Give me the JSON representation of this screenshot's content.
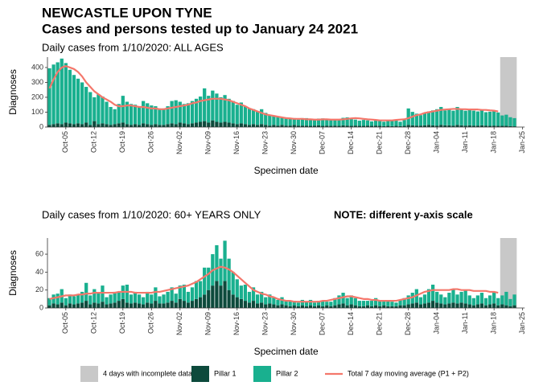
{
  "header": {
    "title": "NEWCASTLE UPON TYNE",
    "subtitle": "Cases and persons tested up to January 24 2021"
  },
  "legend_shade": "4 days with incomplete data",
  "shade_color": "#c8c8c8",
  "chart_data": [
    {
      "type": "bar",
      "stacked": true,
      "title": "Daily cases from 1/10/2020: ALL AGES",
      "ylabel": "Diagnoses",
      "xlabel": "Specimen date",
      "ylim": [
        0,
        470
      ],
      "yticks": [
        0,
        100,
        200,
        300,
        400
      ],
      "categories": [
        null,
        null,
        null,
        null,
        "Oct-05",
        null,
        null,
        null,
        null,
        null,
        null,
        "Oct-12",
        null,
        null,
        null,
        null,
        null,
        null,
        "Oct-19",
        null,
        null,
        null,
        null,
        null,
        null,
        "Oct-26",
        null,
        null,
        null,
        null,
        null,
        null,
        "Nov-02",
        null,
        null,
        null,
        null,
        null,
        null,
        "Nov-09",
        null,
        null,
        null,
        null,
        null,
        null,
        "Nov-16",
        null,
        null,
        null,
        null,
        null,
        null,
        "Nov-23",
        null,
        null,
        null,
        null,
        null,
        null,
        "Nov-30",
        null,
        null,
        null,
        null,
        null,
        null,
        "Dec-07",
        null,
        null,
        null,
        null,
        null,
        null,
        "Dec-14",
        null,
        null,
        null,
        null,
        null,
        null,
        "Dec-21",
        null,
        null,
        null,
        null,
        null,
        null,
        "Dec-28",
        null,
        null,
        null,
        null,
        null,
        null,
        "Jan-04",
        null,
        null,
        null,
        null,
        null,
        null,
        "Jan-11",
        null,
        null,
        null,
        null,
        null,
        null,
        "Jan-18",
        null,
        null,
        null,
        null,
        null,
        null,
        "Jan-25"
      ],
      "series": [
        {
          "name": "Pillar 1",
          "color": "#0d4a3c",
          "values": [
            15,
            20,
            25,
            20,
            30,
            25,
            20,
            25,
            20,
            30,
            15,
            40,
            20,
            25,
            20,
            15,
            20,
            25,
            30,
            20,
            15,
            20,
            15,
            25,
            20,
            15,
            20,
            15,
            15,
            20,
            25,
            20,
            30,
            25,
            20,
            25,
            30,
            35,
            40,
            30,
            45,
            35,
            30,
            35,
            30,
            25,
            20,
            25,
            20,
            15,
            20,
            15,
            20,
            15,
            10,
            15,
            10,
            15,
            10,
            10,
            15,
            10,
            10,
            10,
            8,
            10,
            12,
            8,
            10,
            8,
            10,
            8,
            12,
            10,
            8,
            10,
            8,
            8,
            10,
            8,
            10,
            8,
            6,
            8,
            6,
            8,
            6,
            8,
            15,
            12,
            10,
            10,
            12,
            15,
            12,
            10,
            15,
            12,
            12,
            10,
            15,
            12,
            10,
            12,
            10,
            10,
            12,
            10,
            8,
            10,
            8,
            8,
            8,
            6,
            5,
            null,
            null
          ]
        },
        {
          "name": "Pillar 2",
          "color": "#19b08f",
          "values": [
            380,
            400,
            410,
            440,
            400,
            360,
            330,
            300,
            280,
            240,
            220,
            160,
            200,
            180,
            150,
            120,
            100,
            130,
            180,
            150,
            140,
            130,
            120,
            150,
            140,
            130,
            120,
            110,
            110,
            120,
            150,
            160,
            140,
            130,
            140,
            150,
            160,
            170,
            220,
            180,
            200,
            190,
            170,
            180,
            160,
            150,
            130,
            140,
            120,
            110,
            100,
            90,
            100,
            80,
            70,
            60,
            60,
            50,
            55,
            50,
            45,
            40,
            50,
            50,
            45,
            40,
            45,
            50,
            40,
            45,
            40,
            45,
            50,
            55,
            45,
            40,
            35,
            40,
            35,
            30,
            40,
            35,
            30,
            35,
            40,
            35,
            30,
            40,
            110,
            90,
            80,
            70,
            80,
            90,
            100,
            110,
            120,
            100,
            110,
            100,
            120,
            110,
            100,
            105,
            100,
            95,
            100,
            90,
            95,
            100,
            90,
            70,
            75,
            60,
            55,
            null,
            null
          ]
        },
        {
          "name": "Total 7 day moving average (P1 + P2)",
          "color": "#f4776b",
          "type": "line",
          "values": [
            260,
            320,
            370,
            400,
            410,
            400,
            390,
            370,
            340,
            300,
            270,
            240,
            220,
            200,
            185,
            170,
            150,
            140,
            140,
            145,
            145,
            140,
            135,
            135,
            130,
            125,
            125,
            120,
            120,
            125,
            130,
            135,
            140,
            145,
            150,
            160,
            165,
            175,
            180,
            185,
            190,
            190,
            190,
            185,
            180,
            170,
            160,
            150,
            140,
            125,
            115,
            105,
            95,
            85,
            80,
            75,
            70,
            65,
            60,
            58,
            55,
            55,
            55,
            52,
            52,
            50,
            50,
            52,
            52,
            50,
            50,
            50,
            52,
            55,
            58,
            60,
            58,
            55,
            52,
            50,
            48,
            45,
            45,
            45,
            45,
            48,
            50,
            52,
            60,
            70,
            80,
            85,
            95,
            100,
            105,
            110,
            115,
            118,
            120,
            122,
            122,
            120,
            120,
            118,
            118,
            118,
            115,
            115,
            112,
            110,
            105,
            null,
            null,
            null,
            null,
            null,
            null
          ]
        }
      ]
    },
    {
      "type": "bar",
      "stacked": true,
      "title": "Daily cases from 1/10/2020: 60+ YEARS ONLY",
      "note": "NOTE: different y-axis scale",
      "ylabel": "Diagnoses",
      "xlabel": "Specimen date",
      "ylim": [
        0,
        78
      ],
      "yticks": [
        0,
        20,
        40,
        60
      ],
      "categories": [
        null,
        null,
        null,
        null,
        "Oct-05",
        null,
        null,
        null,
        null,
        null,
        null,
        "Oct-12",
        null,
        null,
        null,
        null,
        null,
        null,
        "Oct-19",
        null,
        null,
        null,
        null,
        null,
        null,
        "Oct-26",
        null,
        null,
        null,
        null,
        null,
        null,
        "Nov-02",
        null,
        null,
        null,
        null,
        null,
        null,
        "Nov-09",
        null,
        null,
        null,
        null,
        null,
        null,
        "Nov-16",
        null,
        null,
        null,
        null,
        null,
        null,
        "Nov-23",
        null,
        null,
        null,
        null,
        null,
        null,
        "Nov-30",
        null,
        null,
        null,
        null,
        null,
        null,
        "Dec-07",
        null,
        null,
        null,
        null,
        null,
        null,
        "Dec-14",
        null,
        null,
        null,
        null,
        null,
        null,
        "Dec-21",
        null,
        null,
        null,
        null,
        null,
        null,
        "Dec-28",
        null,
        null,
        null,
        null,
        null,
        null,
        "Jan-04",
        null,
        null,
        null,
        null,
        null,
        null,
        "Jan-11",
        null,
        null,
        null,
        null,
        null,
        null,
        "Jan-18",
        null,
        null,
        null,
        null,
        null,
        null,
        "Jan-25"
      ],
      "series": [
        {
          "name": "Pillar 1",
          "color": "#0d4a3c",
          "values": [
            3,
            5,
            4,
            6,
            3,
            5,
            4,
            5,
            6,
            8,
            4,
            6,
            5,
            7,
            4,
            5,
            6,
            8,
            10,
            6,
            5,
            6,
            5,
            4,
            6,
            5,
            8,
            5,
            5,
            6,
            8,
            6,
            10,
            8,
            6,
            8,
            10,
            12,
            15,
            20,
            25,
            30,
            25,
            30,
            20,
            15,
            12,
            10,
            8,
            6,
            8,
            5,
            6,
            4,
            5,
            4,
            3,
            4,
            3,
            2,
            3,
            2,
            3,
            2,
            3,
            2,
            3,
            2,
            3,
            2,
            3,
            4,
            5,
            3,
            4,
            3,
            2,
            2,
            3,
            2,
            3,
            2,
            3,
            2,
            2,
            2,
            3,
            3,
            4,
            5,
            6,
            4,
            5,
            6,
            8,
            6,
            5,
            4,
            5,
            6,
            5,
            6,
            5,
            4,
            3,
            4,
            5,
            3,
            4,
            5,
            3,
            4,
            3,
            2,
            3,
            null,
            null
          ]
        },
        {
          "name": "Pillar 2",
          "color": "#19b08f",
          "values": [
            8,
            10,
            12,
            15,
            8,
            10,
            9,
            10,
            12,
            20,
            10,
            15,
            12,
            18,
            8,
            10,
            12,
            10,
            15,
            20,
            10,
            12,
            10,
            8,
            12,
            10,
            15,
            8,
            10,
            12,
            15,
            10,
            15,
            18,
            12,
            15,
            20,
            18,
            30,
            25,
            35,
            40,
            30,
            45,
            35,
            25,
            20,
            15,
            18,
            12,
            15,
            10,
            12,
            8,
            10,
            8,
            6,
            8,
            5,
            6,
            5,
            4,
            6,
            5,
            6,
            4,
            5,
            6,
            4,
            5,
            8,
            10,
            12,
            8,
            10,
            8,
            6,
            6,
            5,
            6,
            8,
            6,
            5,
            6,
            5,
            4,
            6,
            8,
            10,
            12,
            15,
            8,
            10,
            15,
            18,
            12,
            10,
            8,
            12,
            15,
            10,
            12,
            15,
            10,
            8,
            10,
            12,
            8,
            10,
            12,
            8,
            10,
            15,
            8,
            12,
            null,
            null
          ]
        },
        {
          "name": "Total 7 day moving average (P1 + P2)",
          "color": "#f4776b",
          "type": "line",
          "values": [
            10,
            11,
            12,
            13,
            14,
            14,
            14,
            15,
            15,
            16,
            16,
            17,
            17,
            17,
            17,
            17,
            17,
            18,
            18,
            18,
            18,
            17,
            17,
            17,
            17,
            17,
            18,
            18,
            19,
            20,
            21,
            22,
            23,
            24,
            25,
            27,
            29,
            32,
            35,
            38,
            42,
            44,
            46,
            45,
            43,
            40,
            36,
            32,
            28,
            24,
            20,
            18,
            16,
            15,
            13,
            12,
            10,
            9,
            8,
            8,
            7,
            7,
            7,
            7,
            7,
            7,
            7,
            8,
            8,
            9,
            10,
            11,
            12,
            13,
            13,
            12,
            11,
            10,
            10,
            9,
            9,
            8,
            8,
            8,
            8,
            8,
            9,
            10,
            11,
            12,
            14,
            16,
            18,
            19,
            20,
            20,
            20,
            20,
            20,
            21,
            21,
            20,
            20,
            20,
            19,
            19,
            19,
            19,
            18,
            18,
            17,
            null,
            null,
            null,
            null,
            null,
            null
          ]
        }
      ]
    }
  ]
}
